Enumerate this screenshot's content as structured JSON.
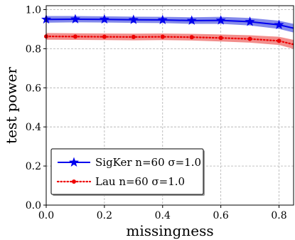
{
  "chart_data": {
    "type": "line",
    "xlabel": "missingness",
    "ylabel": "test power",
    "xlim": [
      0,
      0.85
    ],
    "ylim": [
      0,
      1.02
    ],
    "xticks": [
      "0.0",
      "0.2",
      "0.4",
      "0.6",
      "0.8"
    ],
    "xtick_values": [
      0,
      0.2,
      0.4,
      0.6,
      0.8
    ],
    "yticks": [
      "0.0",
      "0.2",
      "0.4",
      "0.6",
      "0.8",
      "1.0"
    ],
    "ytick_values": [
      0,
      0.2,
      0.4,
      0.6,
      0.8,
      1.0
    ],
    "grid": true,
    "legend_position": "lower-left",
    "series": [
      {
        "name": "SigKer n=60 σ=1.0",
        "color": "#0000ee",
        "band_color": "#6f75e8",
        "marker": "star",
        "line_style": "solid",
        "x": [
          0,
          0.1,
          0.2,
          0.3,
          0.4,
          0.5,
          0.6,
          0.7,
          0.8,
          0.85
        ],
        "values": [
          0.95,
          0.951,
          0.95,
          0.948,
          0.947,
          0.944,
          0.945,
          0.938,
          0.922,
          0.905
        ],
        "band_halfwidth": [
          0.017,
          0.016,
          0.016,
          0.016,
          0.016,
          0.017,
          0.018,
          0.019,
          0.021,
          0.022
        ]
      },
      {
        "name": "Lau n=60 σ=1.0",
        "color": "#ee0000",
        "band_color": "#f07a78",
        "marker": "circle",
        "line_style": "dotted",
        "x": [
          0,
          0.1,
          0.2,
          0.3,
          0.4,
          0.5,
          0.6,
          0.7,
          0.8,
          0.85
        ],
        "values": [
          0.863,
          0.862,
          0.861,
          0.86,
          0.861,
          0.859,
          0.855,
          0.85,
          0.84,
          0.822
        ],
        "band_halfwidth": [
          0.017,
          0.017,
          0.017,
          0.017,
          0.017,
          0.017,
          0.018,
          0.019,
          0.021,
          0.023
        ]
      }
    ]
  }
}
